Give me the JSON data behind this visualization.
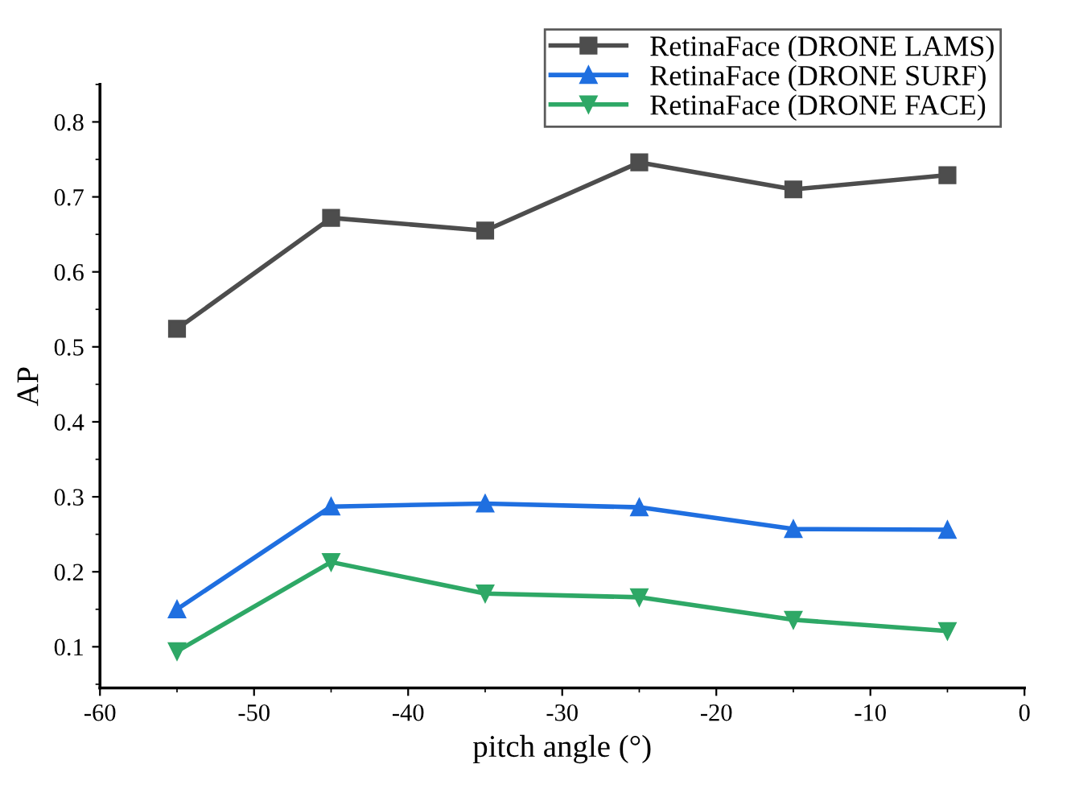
{
  "chart_data": {
    "type": "line",
    "xlabel": "pitch angle (°)",
    "ylabel": "AP",
    "x": [
      -55,
      -45,
      -35,
      -25,
      -15,
      -5
    ],
    "series": [
      {
        "name": "RetinaFace (DRONE LAMS)",
        "color": "#4d4d4d",
        "marker": "square",
        "values": [
          0.524,
          0.672,
          0.655,
          0.746,
          0.71,
          0.729
        ]
      },
      {
        "name": "RetinaFace (DRONE SURF)",
        "color": "#1f6fe0",
        "marker": "triangle",
        "values": [
          0.15,
          0.287,
          0.291,
          0.286,
          0.257,
          0.256
        ]
      },
      {
        "name": "RetinaFace (DRONE FACE)",
        "color": "#2ea866",
        "marker": "triangle_down",
        "values": [
          0.094,
          0.213,
          0.171,
          0.166,
          0.136,
          0.121
        ]
      }
    ],
    "xlim": [
      -60,
      0
    ],
    "xticks": [
      -60,
      -50,
      -40,
      -30,
      -20,
      -10,
      0
    ],
    "ylim": [
      0.045,
      0.85
    ],
    "yticks": [
      0.1,
      0.2,
      0.3,
      0.4,
      0.5,
      0.6,
      0.7,
      0.8
    ],
    "grid": false,
    "legend": "top right",
    "line_style": "solid"
  }
}
